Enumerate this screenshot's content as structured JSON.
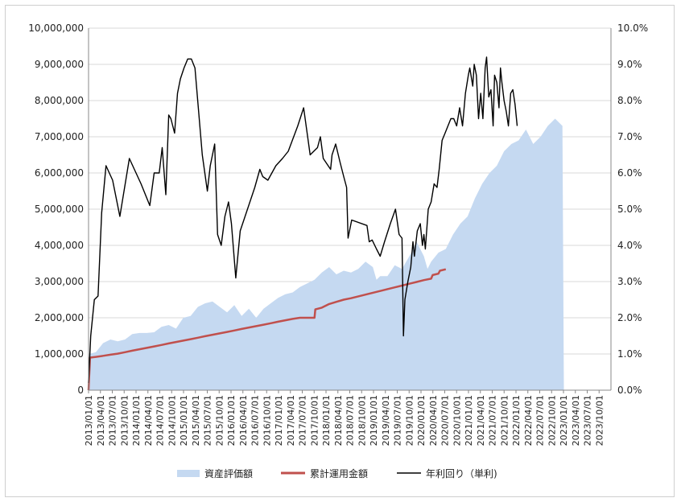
{
  "chart_data": {
    "type": "area",
    "categories": [
      "2013/01/01",
      "2013/04/01",
      "2013/07/01",
      "2013/10/01",
      "2014/01/01",
      "2014/04/01",
      "2014/07/01",
      "2014/10/01",
      "2015/01/01",
      "2015/04/01",
      "2015/07/01",
      "2015/10/01",
      "2016/01/01",
      "2016/04/01",
      "2016/07/01",
      "2016/10/01",
      "2017/01/01",
      "2017/04/01",
      "2017/07/01",
      "2017/10/01",
      "2018/01/01",
      "2018/04/01",
      "2018/07/01",
      "2018/10/01",
      "2019/01/01",
      "2019/04/01",
      "2019/07/01",
      "2019/10/01",
      "2020/01/01",
      "2020/04/01",
      "2020/07/01",
      "2020/10/01",
      "2021/01/01",
      "2021/04/01",
      "2021/07/01",
      "2021/10/01",
      "2022/01/01",
      "2022/04/01",
      "2022/07/01",
      "2022/10/01",
      "2023/01/01",
      "2023/04/01",
      "2023/07/01",
      "2023/10/01"
    ],
    "y_left_ticks": [
      "0",
      "1,000,000",
      "2,000,000",
      "3,000,000",
      "4,000,000",
      "5,000,000",
      "6,000,000",
      "7,000,000",
      "8,000,000",
      "9,000,000",
      "10,000,000"
    ],
    "y_right_ticks": [
      "0.0%",
      "1.0%",
      "2.0%",
      "3.0%",
      "4.0%",
      "5.0%",
      "6.0%",
      "7.0%",
      "8.0%",
      "9.0%",
      "10.0%"
    ],
    "ylim_left": [
      0,
      10000000
    ],
    "ylim_right": [
      0,
      10
    ],
    "legend_position": "bottom",
    "colors": {
      "asset": "#c5d9f1",
      "cumulative": "#c0504d",
      "yield": "#000000"
    },
    "series": [
      {
        "name": "資産評価額",
        "kind": "area",
        "axis": "left",
        "points": [
          [
            0,
            0
          ],
          [
            0.1,
            1000000
          ],
          [
            1,
            1050000
          ],
          [
            2,
            1300000
          ],
          [
            3,
            1400000
          ],
          [
            4,
            1350000
          ],
          [
            5,
            1400000
          ],
          [
            6,
            1550000
          ],
          [
            7,
            1580000
          ],
          [
            8,
            1580000
          ],
          [
            9,
            1600000
          ],
          [
            10,
            1750000
          ],
          [
            11,
            1800000
          ],
          [
            12,
            1700000
          ],
          [
            13,
            2000000
          ],
          [
            14,
            2050000
          ],
          [
            15,
            2300000
          ],
          [
            16,
            2400000
          ],
          [
            17,
            2450000
          ],
          [
            18,
            2300000
          ],
          [
            19,
            2150000
          ],
          [
            20,
            2350000
          ],
          [
            21,
            2050000
          ],
          [
            22,
            2250000
          ],
          [
            23,
            2000000
          ],
          [
            24,
            2250000
          ],
          [
            25,
            2400000
          ],
          [
            26,
            2550000
          ],
          [
            27,
            2650000
          ],
          [
            28,
            2700000
          ],
          [
            29,
            2850000
          ],
          [
            30,
            2950000
          ],
          [
            31,
            3050000
          ],
          [
            32,
            3250000
          ],
          [
            33,
            3400000
          ],
          [
            34,
            3200000
          ],
          [
            35,
            3300000
          ],
          [
            36,
            3250000
          ],
          [
            37,
            3350000
          ],
          [
            38,
            3550000
          ],
          [
            39,
            3400000
          ],
          [
            39.5,
            3050000
          ],
          [
            40,
            3150000
          ],
          [
            41,
            3150000
          ],
          [
            42,
            3450000
          ],
          [
            43,
            3350000
          ],
          [
            44,
            3700000
          ],
          [
            45,
            4100000
          ],
          [
            46,
            3700000
          ],
          [
            46.5,
            3350000
          ],
          [
            47,
            3550000
          ],
          [
            48,
            3800000
          ],
          [
            49,
            3900000
          ],
          [
            50,
            4300000
          ],
          [
            51,
            4600000
          ],
          [
            52,
            4800000
          ],
          [
            53,
            5300000
          ],
          [
            54,
            5700000
          ],
          [
            55,
            6000000
          ],
          [
            56,
            6200000
          ],
          [
            57,
            6600000
          ],
          [
            58,
            6800000
          ],
          [
            59,
            6900000
          ],
          [
            60,
            7200000
          ],
          [
            61,
            6800000
          ],
          [
            62,
            7000000
          ],
          [
            63,
            7300000
          ],
          [
            64,
            7500000
          ],
          [
            65,
            7300000
          ],
          [
            65.2,
            0
          ]
        ]
      },
      {
        "name": "累計運用金額",
        "kind": "line",
        "axis": "left",
        "points": [
          [
            0,
            0
          ],
          [
            0.2,
            900000
          ],
          [
            1,
            920000
          ],
          [
            2,
            950000
          ],
          [
            3,
            980000
          ],
          [
            4,
            1010000
          ],
          [
            5,
            1050000
          ],
          [
            6,
            1090000
          ],
          [
            7,
            1130000
          ],
          [
            8,
            1170000
          ],
          [
            9,
            1210000
          ],
          [
            10,
            1250000
          ],
          [
            11,
            1290000
          ],
          [
            12,
            1330000
          ],
          [
            13,
            1370000
          ],
          [
            14,
            1410000
          ],
          [
            15,
            1450000
          ],
          [
            16,
            1490000
          ],
          [
            17,
            1530000
          ],
          [
            18,
            1570000
          ],
          [
            19,
            1610000
          ],
          [
            20,
            1650000
          ],
          [
            21,
            1690000
          ],
          [
            22,
            1730000
          ],
          [
            23,
            1770000
          ],
          [
            24,
            1810000
          ],
          [
            25,
            1850000
          ],
          [
            26,
            1890000
          ],
          [
            27,
            1930000
          ],
          [
            28,
            1970000
          ],
          [
            29,
            2000000
          ],
          [
            30,
            2000000
          ],
          [
            31,
            2000000
          ],
          [
            31.1,
            2230000
          ],
          [
            32,
            2280000
          ],
          [
            33,
            2380000
          ],
          [
            34,
            2440000
          ],
          [
            35,
            2500000
          ],
          [
            36,
            2540000
          ],
          [
            37,
            2590000
          ],
          [
            38,
            2640000
          ],
          [
            39,
            2690000
          ],
          [
            40,
            2740000
          ],
          [
            41,
            2790000
          ],
          [
            42,
            2840000
          ],
          [
            43,
            2890000
          ],
          [
            44,
            2940000
          ],
          [
            45,
            2990000
          ],
          [
            46,
            3040000
          ],
          [
            47,
            3080000
          ],
          [
            47.2,
            3180000
          ],
          [
            48,
            3220000
          ],
          [
            48.2,
            3300000
          ],
          [
            49,
            3340000
          ]
        ]
      },
      {
        "name": "年利回り（単利)",
        "kind": "line",
        "axis": "right",
        "points": [
          [
            0,
            0.2
          ],
          [
            0.3,
            1.5
          ],
          [
            0.8,
            2.5
          ],
          [
            1.3,
            2.6
          ],
          [
            1.8,
            4.9
          ],
          [
            2.4,
            6.2
          ],
          [
            3.3,
            5.8
          ],
          [
            4.3,
            4.8
          ],
          [
            5.6,
            6.4
          ],
          [
            7.2,
            5.7
          ],
          [
            8.4,
            5.1
          ],
          [
            9,
            6.0
          ],
          [
            9.7,
            6.0
          ],
          [
            10.1,
            6.7
          ],
          [
            10.6,
            5.4
          ],
          [
            11,
            7.6
          ],
          [
            11.3,
            7.5
          ],
          [
            11.8,
            7.1
          ],
          [
            12.2,
            8.2
          ],
          [
            12.6,
            8.6
          ],
          [
            13.1,
            8.9
          ],
          [
            13.6,
            9.15
          ],
          [
            14.1,
            9.15
          ],
          [
            14.6,
            8.9
          ],
          [
            15.6,
            6.5
          ],
          [
            16.3,
            5.5
          ],
          [
            16.7,
            6.2
          ],
          [
            17.3,
            6.8
          ],
          [
            17.7,
            4.3
          ],
          [
            18.2,
            4.0
          ],
          [
            18.7,
            4.8
          ],
          [
            19.2,
            5.2
          ],
          [
            19.6,
            4.6
          ],
          [
            20.2,
            3.1
          ],
          [
            20.8,
            4.4
          ],
          [
            22.8,
            5.6
          ],
          [
            23.5,
            6.1
          ],
          [
            23.9,
            5.9
          ],
          [
            24.6,
            5.8
          ],
          [
            25.7,
            6.2
          ],
          [
            26.6,
            6.4
          ],
          [
            27.4,
            6.6
          ],
          [
            28.7,
            7.3
          ],
          [
            29.5,
            7.8
          ],
          [
            30.4,
            6.5
          ],
          [
            31.4,
            6.7
          ],
          [
            31.8,
            7.0
          ],
          [
            32.2,
            6.4
          ],
          [
            33.2,
            6.1
          ],
          [
            33.4,
            6.5
          ],
          [
            33.9,
            6.8
          ],
          [
            34.5,
            6.3
          ],
          [
            35,
            5.9
          ],
          [
            35.4,
            5.6
          ],
          [
            35.6,
            4.2
          ],
          [
            36.1,
            4.7
          ],
          [
            38.2,
            4.55
          ],
          [
            38.5,
            4.1
          ],
          [
            38.9,
            4.15
          ],
          [
            39.5,
            3.9
          ],
          [
            40,
            3.7
          ],
          [
            40.6,
            4.1
          ],
          [
            41.4,
            4.6
          ],
          [
            42.1,
            5.0
          ],
          [
            42.6,
            4.3
          ],
          [
            43,
            4.2
          ],
          [
            43.2,
            1.5
          ],
          [
            43.4,
            2.5
          ],
          [
            43.8,
            3.0
          ],
          [
            44.2,
            3.4
          ],
          [
            44.5,
            4.1
          ],
          [
            44.7,
            3.7
          ],
          [
            45.1,
            4.4
          ],
          [
            45.5,
            4.6
          ],
          [
            45.8,
            4.0
          ],
          [
            46,
            4.3
          ],
          [
            46.2,
            3.9
          ],
          [
            46.6,
            5.0
          ],
          [
            47,
            5.2
          ],
          [
            47.4,
            5.7
          ],
          [
            47.8,
            5.6
          ],
          [
            48.1,
            6.1
          ],
          [
            48.5,
            6.9
          ],
          [
            48.9,
            7.1
          ],
          [
            49.3,
            7.3
          ],
          [
            49.7,
            7.5
          ],
          [
            50.1,
            7.5
          ],
          [
            50.5,
            7.3
          ],
          [
            50.9,
            7.8
          ],
          [
            51.3,
            7.3
          ],
          [
            51.7,
            8.2
          ],
          [
            52.1,
            8.7
          ],
          [
            52.3,
            8.9
          ],
          [
            52.7,
            8.4
          ],
          [
            52.9,
            9.0
          ],
          [
            53.2,
            8.7
          ],
          [
            53.5,
            7.5
          ],
          [
            53.8,
            8.2
          ],
          [
            54.1,
            7.5
          ],
          [
            54.4,
            8.9
          ],
          [
            54.6,
            9.2
          ],
          [
            54.9,
            8.1
          ],
          [
            55.2,
            8.3
          ],
          [
            55.5,
            7.3
          ],
          [
            55.7,
            8.7
          ],
          [
            56,
            8.5
          ],
          [
            56.3,
            7.8
          ],
          [
            56.5,
            8.9
          ],
          [
            56.7,
            8.5
          ],
          [
            57,
            8.0
          ],
          [
            57.3,
            7.7
          ],
          [
            57.6,
            7.3
          ],
          [
            57.9,
            8.2
          ],
          [
            58.2,
            8.3
          ],
          [
            58.5,
            7.9
          ],
          [
            58.8,
            7.3
          ]
        ]
      }
    ],
    "x_index_max": 65.5
  }
}
